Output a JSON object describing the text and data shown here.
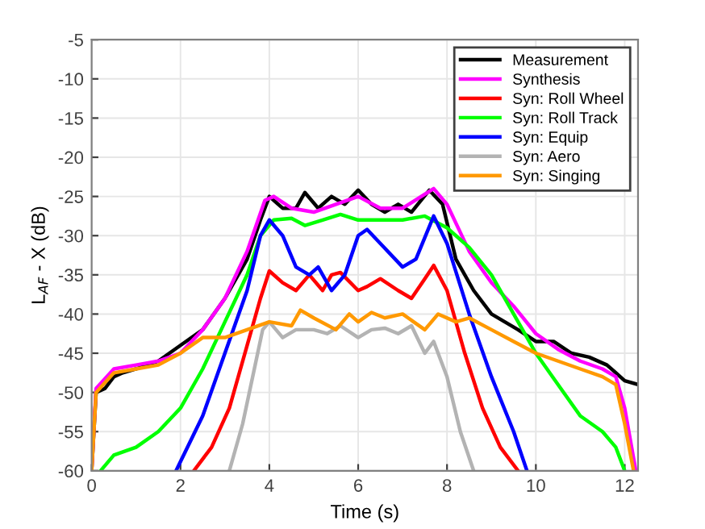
{
  "chart_data": {
    "type": "line",
    "xlabel": "Time (s)",
    "ylabel": "L$_{AF}$ - X (dB)",
    "xlim": [
      0,
      12.3
    ],
    "ylim": [
      -60,
      -5
    ],
    "xticks": [
      0,
      2,
      4,
      6,
      8,
      10,
      12
    ],
    "yticks": [
      -60,
      -55,
      -50,
      -45,
      -40,
      -35,
      -30,
      -25,
      -20,
      -15,
      -10,
      -5
    ],
    "grid": true,
    "legend": "top right",
    "line_style": "solid",
    "marker": "none",
    "series": [
      {
        "name": "Measurement",
        "color": "#000000",
        "x": [
          0,
          0.1,
          0.3,
          0.5,
          0.7,
          1.0,
          1.5,
          2,
          2.5,
          3,
          3.5,
          3.8,
          4.0,
          4.3,
          4.6,
          4.8,
          5.1,
          5.4,
          5.7,
          6.0,
          6.3,
          6.6,
          6.9,
          7.2,
          7.6,
          7.9,
          8.2,
          8.6,
          9.0,
          9.3,
          9.6,
          10,
          10.4,
          10.8,
          11.2,
          11.6,
          12.0,
          12.3
        ],
        "values": [
          -60,
          -50,
          -49.5,
          -48,
          -47.5,
          -47,
          -46,
          -44,
          -42,
          -38,
          -33,
          -28,
          -25,
          -26.5,
          -26.5,
          -24.5,
          -26.5,
          -25,
          -26,
          -24.2,
          -26,
          -27,
          -26,
          -27,
          -24.2,
          -26,
          -33,
          -37,
          -40,
          -41,
          -42,
          -43.5,
          -43.5,
          -45,
          -45.5,
          -46.5,
          -48.5,
          -49
        ]
      },
      {
        "name": "Synthesis",
        "color": "#ff00ff",
        "x": [
          0,
          0.1,
          0.5,
          1,
          1.5,
          2,
          2.5,
          3,
          3.5,
          3.9,
          4.1,
          4.5,
          5,
          5.5,
          6,
          6.5,
          7,
          7.7,
          8,
          8.5,
          9,
          9.5,
          10,
          10.5,
          11,
          11.5,
          11.8,
          12,
          12.25
        ],
        "values": [
          -60,
          -49.5,
          -47,
          -46.5,
          -46,
          -45,
          -42,
          -38,
          -32,
          -25.5,
          -25,
          -26.5,
          -27,
          -26,
          -25,
          -26.5,
          -26.5,
          -24,
          -26,
          -32,
          -36,
          -39,
          -42.5,
          -44.5,
          -46,
          -47,
          -48,
          -52,
          -60
        ]
      },
      {
        "name": "Syn: Roll Wheel",
        "color": "#ff0000",
        "x": [
          2.3,
          2.7,
          3.1,
          3.5,
          3.8,
          4.0,
          4.3,
          4.6,
          4.9,
          5.2,
          5.4,
          5.6,
          6,
          6.2,
          6.5,
          6.9,
          7.2,
          7.5,
          7.7,
          8.0,
          8.4,
          8.8,
          9.2,
          9.6
        ],
        "values": [
          -60,
          -57,
          -52,
          -44,
          -38,
          -34.5,
          -36,
          -37,
          -35,
          -37,
          -35,
          -34.7,
          -37,
          -36.5,
          -35.5,
          -37,
          -38,
          -35.5,
          -33.8,
          -37,
          -45,
          -52,
          -57,
          -60
        ]
      },
      {
        "name": "Syn: Roll Track",
        "color": "#00ff00",
        "x": [
          0.2,
          0.5,
          1,
          1.5,
          2,
          2.5,
          3,
          3.5,
          3.8,
          4.1,
          4.5,
          4.8,
          5.2,
          5.6,
          6,
          6.5,
          7,
          7.5,
          8,
          8.5,
          9,
          9.5,
          10,
          10.5,
          11,
          11.5,
          11.8,
          12.0
        ],
        "values": [
          -60,
          -58,
          -57,
          -55,
          -52,
          -47,
          -41,
          -35,
          -30,
          -28,
          -27.8,
          -28.7,
          -28,
          -27.3,
          -28,
          -28,
          -28,
          -27.5,
          -29,
          -31.5,
          -35,
          -40,
          -45,
          -49,
          -53,
          -55,
          -57,
          -60
        ]
      },
      {
        "name": "Syn: Equip",
        "color": "#0000ff",
        "x": [
          1.9,
          2.5,
          3,
          3.5,
          3.8,
          4.0,
          4.3,
          4.6,
          4.9,
          5.1,
          5.4,
          5.7,
          6.0,
          6.2,
          6.5,
          7.0,
          7.3,
          7.7,
          8,
          8.5,
          9,
          9.5,
          9.8
        ],
        "values": [
          -60,
          -53,
          -45,
          -37,
          -30,
          -28,
          -30,
          -34,
          -35,
          -34,
          -37,
          -35,
          -30,
          -29.2,
          -31,
          -34,
          -33,
          -27.5,
          -31,
          -40,
          -48,
          -55,
          -60
        ]
      },
      {
        "name": "Syn: Aero",
        "color": "#b3b3b3",
        "x": [
          3.1,
          3.4,
          3.7,
          3.85,
          4.0,
          4.3,
          4.6,
          5.0,
          5.3,
          5.6,
          6.0,
          6.3,
          6.6,
          6.9,
          7.2,
          7.5,
          7.7,
          8,
          8.3,
          8.6
        ],
        "values": [
          -60,
          -54,
          -46,
          -42,
          -41,
          -43,
          -42,
          -42,
          -42.5,
          -41.5,
          -43,
          -42,
          -41.8,
          -42.5,
          -41.5,
          -45,
          -43.5,
          -48,
          -55,
          -60
        ]
      },
      {
        "name": "Syn: Singing",
        "color": "#ff9900",
        "x": [
          0,
          0.1,
          0.5,
          1,
          1.5,
          2,
          2.5,
          3,
          3.5,
          4,
          4.5,
          4.7,
          5,
          5.5,
          5.8,
          6,
          6.3,
          6.6,
          7,
          7.5,
          7.8,
          8.2,
          8.5,
          9,
          9.5,
          10,
          10.5,
          11,
          11.5,
          11.8,
          12.0,
          12.2
        ],
        "values": [
          -60,
          -50,
          -47.5,
          -47,
          -46.5,
          -45,
          -43,
          -43,
          -42,
          -41,
          -41.5,
          -39.5,
          -40.5,
          -42,
          -40,
          -41,
          -39.8,
          -40.5,
          -40,
          -42,
          -40,
          -41,
          -40.5,
          -42,
          -43.5,
          -45,
          -46,
          -47,
          -48,
          -49,
          -54,
          -60
        ]
      }
    ]
  }
}
